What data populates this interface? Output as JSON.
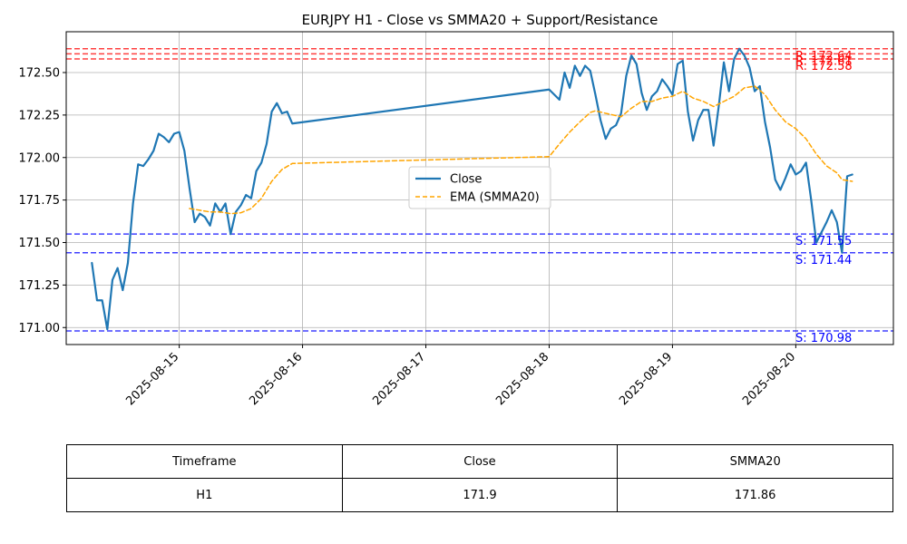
{
  "chart_data": {
    "type": "line",
    "title": "EURJPY H1 - Close vs SMMA20 + Support/Resistance",
    "xlim": [
      "2025-08-14 02:00",
      "2025-08-20 19:00"
    ],
    "ylim": [
      170.9,
      172.74
    ],
    "grid": true,
    "x_ticks": [
      "2025-08-15",
      "2025-08-16",
      "2025-08-17",
      "2025-08-18",
      "2025-08-19",
      "2025-08-20"
    ],
    "y_ticks": [
      171.0,
      171.25,
      171.5,
      171.75,
      172.0,
      172.25,
      172.5
    ],
    "y_tick_labels": [
      "171.00",
      "171.25",
      "171.50",
      "171.75",
      "172.00",
      "172.25",
      "172.50"
    ],
    "legend_position": "center-right",
    "series": [
      {
        "name": "Close",
        "color": "#1f77b4",
        "style": "solid",
        "points": [
          [
            "2025-08-14 07:00",
            171.38
          ],
          [
            "2025-08-14 08:00",
            171.16
          ],
          [
            "2025-08-14 09:00",
            171.16
          ],
          [
            "2025-08-14 10:00",
            170.99
          ],
          [
            "2025-08-14 11:00",
            171.28
          ],
          [
            "2025-08-14 12:00",
            171.35
          ],
          [
            "2025-08-14 13:00",
            171.22
          ],
          [
            "2025-08-14 14:00",
            171.38
          ],
          [
            "2025-08-14 15:00",
            171.73
          ],
          [
            "2025-08-14 16:00",
            171.96
          ],
          [
            "2025-08-14 17:00",
            171.95
          ],
          [
            "2025-08-14 18:00",
            171.99
          ],
          [
            "2025-08-14 19:00",
            172.04
          ],
          [
            "2025-08-14 20:00",
            172.14
          ],
          [
            "2025-08-14 21:00",
            172.12
          ],
          [
            "2025-08-14 22:00",
            172.09
          ],
          [
            "2025-08-14 23:00",
            172.14
          ],
          [
            "2025-08-15 00:00",
            172.15
          ],
          [
            "2025-08-15 01:00",
            172.04
          ],
          [
            "2025-08-15 02:00",
            171.82
          ],
          [
            "2025-08-15 03:00",
            171.62
          ],
          [
            "2025-08-15 04:00",
            171.67
          ],
          [
            "2025-08-15 05:00",
            171.65
          ],
          [
            "2025-08-15 06:00",
            171.6
          ],
          [
            "2025-08-15 07:00",
            171.73
          ],
          [
            "2025-08-15 08:00",
            171.68
          ],
          [
            "2025-08-15 09:00",
            171.73
          ],
          [
            "2025-08-15 10:00",
            171.55
          ],
          [
            "2025-08-15 11:00",
            171.68
          ],
          [
            "2025-08-15 12:00",
            171.72
          ],
          [
            "2025-08-15 13:00",
            171.78
          ],
          [
            "2025-08-15 14:00",
            171.76
          ],
          [
            "2025-08-15 15:00",
            171.92
          ],
          [
            "2025-08-15 16:00",
            171.97
          ],
          [
            "2025-08-15 17:00",
            172.08
          ],
          [
            "2025-08-15 18:00",
            172.27
          ],
          [
            "2025-08-15 19:00",
            172.32
          ],
          [
            "2025-08-15 20:00",
            172.26
          ],
          [
            "2025-08-15 21:00",
            172.27
          ],
          [
            "2025-08-15 22:00",
            172.2
          ],
          [
            "2025-08-18 00:00",
            172.4
          ],
          [
            "2025-08-18 01:00",
            172.37
          ],
          [
            "2025-08-18 02:00",
            172.34
          ],
          [
            "2025-08-18 03:00",
            172.5
          ],
          [
            "2025-08-18 04:00",
            172.41
          ],
          [
            "2025-08-18 05:00",
            172.54
          ],
          [
            "2025-08-18 06:00",
            172.48
          ],
          [
            "2025-08-18 07:00",
            172.54
          ],
          [
            "2025-08-18 08:00",
            172.51
          ],
          [
            "2025-08-18 09:00",
            172.37
          ],
          [
            "2025-08-18 10:00",
            172.22
          ],
          [
            "2025-08-18 11:00",
            172.11
          ],
          [
            "2025-08-18 12:00",
            172.17
          ],
          [
            "2025-08-18 13:00",
            172.19
          ],
          [
            "2025-08-18 14:00",
            172.26
          ],
          [
            "2025-08-18 15:00",
            172.48
          ],
          [
            "2025-08-18 16:00",
            172.6
          ],
          [
            "2025-08-18 17:00",
            172.55
          ],
          [
            "2025-08-18 18:00",
            172.38
          ],
          [
            "2025-08-18 19:00",
            172.28
          ],
          [
            "2025-08-18 20:00",
            172.36
          ],
          [
            "2025-08-18 21:00",
            172.39
          ],
          [
            "2025-08-18 22:00",
            172.46
          ],
          [
            "2025-08-18 23:00",
            172.42
          ],
          [
            "2025-08-19 00:00",
            172.37
          ],
          [
            "2025-08-19 01:00",
            172.55
          ],
          [
            "2025-08-19 02:00",
            172.57
          ],
          [
            "2025-08-19 03:00",
            172.27
          ],
          [
            "2025-08-19 04:00",
            172.1
          ],
          [
            "2025-08-19 05:00",
            172.22
          ],
          [
            "2025-08-19 06:00",
            172.28
          ],
          [
            "2025-08-19 07:00",
            172.28
          ],
          [
            "2025-08-19 08:00",
            172.07
          ],
          [
            "2025-08-19 09:00",
            172.3
          ],
          [
            "2025-08-19 10:00",
            172.56
          ],
          [
            "2025-08-19 11:00",
            172.39
          ],
          [
            "2025-08-19 12:00",
            172.58
          ],
          [
            "2025-08-19 13:00",
            172.64
          ],
          [
            "2025-08-19 14:00",
            172.6
          ],
          [
            "2025-08-19 15:00",
            172.53
          ],
          [
            "2025-08-19 16:00",
            172.39
          ],
          [
            "2025-08-19 17:00",
            172.42
          ],
          [
            "2025-08-19 18:00",
            172.21
          ],
          [
            "2025-08-19 19:00",
            172.06
          ],
          [
            "2025-08-19 20:00",
            171.87
          ],
          [
            "2025-08-19 21:00",
            171.81
          ],
          [
            "2025-08-19 22:00",
            171.88
          ],
          [
            "2025-08-19 23:00",
            171.96
          ],
          [
            "2025-08-20 00:00",
            171.9
          ],
          [
            "2025-08-20 01:00",
            171.92
          ],
          [
            "2025-08-20 02:00",
            171.97
          ],
          [
            "2025-08-20 03:00",
            171.75
          ],
          [
            "2025-08-20 04:00",
            171.5
          ],
          [
            "2025-08-20 05:00",
            171.56
          ],
          [
            "2025-08-20 06:00",
            171.62
          ],
          [
            "2025-08-20 07:00",
            171.69
          ],
          [
            "2025-08-20 08:00",
            171.62
          ],
          [
            "2025-08-20 09:00",
            171.44
          ],
          [
            "2025-08-20 10:00",
            171.89
          ],
          [
            "2025-08-20 11:00",
            171.9
          ]
        ]
      },
      {
        "name": "EMA (SMMA20)",
        "color": "#ffa500",
        "style": "dashed",
        "points": [
          [
            "2025-08-15 02:00",
            171.7
          ],
          [
            "2025-08-15 04:00",
            171.69
          ],
          [
            "2025-08-15 06:00",
            171.68
          ],
          [
            "2025-08-15 08:00",
            171.68
          ],
          [
            "2025-08-15 10:00",
            171.67
          ],
          [
            "2025-08-15 12:00",
            171.675
          ],
          [
            "2025-08-15 14:00",
            171.7
          ],
          [
            "2025-08-15 16:00",
            171.76
          ],
          [
            "2025-08-15 18:00",
            171.86
          ],
          [
            "2025-08-15 20:00",
            171.93
          ],
          [
            "2025-08-15 22:00",
            171.965
          ],
          [
            "2025-08-18 00:00",
            172.005
          ],
          [
            "2025-08-18 02:00",
            172.08
          ],
          [
            "2025-08-18 04:00",
            172.15
          ],
          [
            "2025-08-18 06:00",
            172.21
          ],
          [
            "2025-08-18 08:00",
            172.265
          ],
          [
            "2025-08-18 09:00",
            172.275
          ],
          [
            "2025-08-18 11:00",
            172.26
          ],
          [
            "2025-08-18 14:00",
            172.24
          ],
          [
            "2025-08-18 16:00",
            172.29
          ],
          [
            "2025-08-18 18:00",
            172.33
          ],
          [
            "2025-08-18 20:00",
            172.33
          ],
          [
            "2025-08-18 22:00",
            172.35
          ],
          [
            "2025-08-19 00:00",
            172.36
          ],
          [
            "2025-08-19 02:00",
            172.39
          ],
          [
            "2025-08-19 04:00",
            172.35
          ],
          [
            "2025-08-19 06:00",
            172.33
          ],
          [
            "2025-08-19 08:00",
            172.3
          ],
          [
            "2025-08-19 10:00",
            172.33
          ],
          [
            "2025-08-19 12:00",
            172.36
          ],
          [
            "2025-08-19 14:00",
            172.41
          ],
          [
            "2025-08-19 16:00",
            172.42
          ],
          [
            "2025-08-19 18:00",
            172.37
          ],
          [
            "2025-08-19 20:00",
            172.28
          ],
          [
            "2025-08-19 22:00",
            172.21
          ],
          [
            "2025-08-20 00:00",
            172.17
          ],
          [
            "2025-08-20 02:00",
            172.11
          ],
          [
            "2025-08-20 04:00",
            172.02
          ],
          [
            "2025-08-20 06:00",
            171.95
          ],
          [
            "2025-08-20 08:00",
            171.91
          ],
          [
            "2025-08-20 09:00",
            171.87
          ],
          [
            "2025-08-20 11:00",
            171.86
          ]
        ]
      }
    ],
    "resistance": {
      "color": "#ff0000",
      "levels": [
        172.64,
        172.61,
        172.58
      ],
      "labels": [
        "R: 172.64",
        "R: 172.61",
        "R: 172.58"
      ]
    },
    "support": {
      "color": "#0000ff",
      "levels": [
        171.55,
        171.44,
        170.98
      ],
      "labels": [
        "S: 171.55",
        "S: 171.44",
        "S: 170.98"
      ]
    }
  },
  "summary_table": {
    "headers": [
      "Timeframe",
      "Close",
      "SMMA20"
    ],
    "row": [
      "H1",
      "171.9",
      "171.86"
    ]
  }
}
